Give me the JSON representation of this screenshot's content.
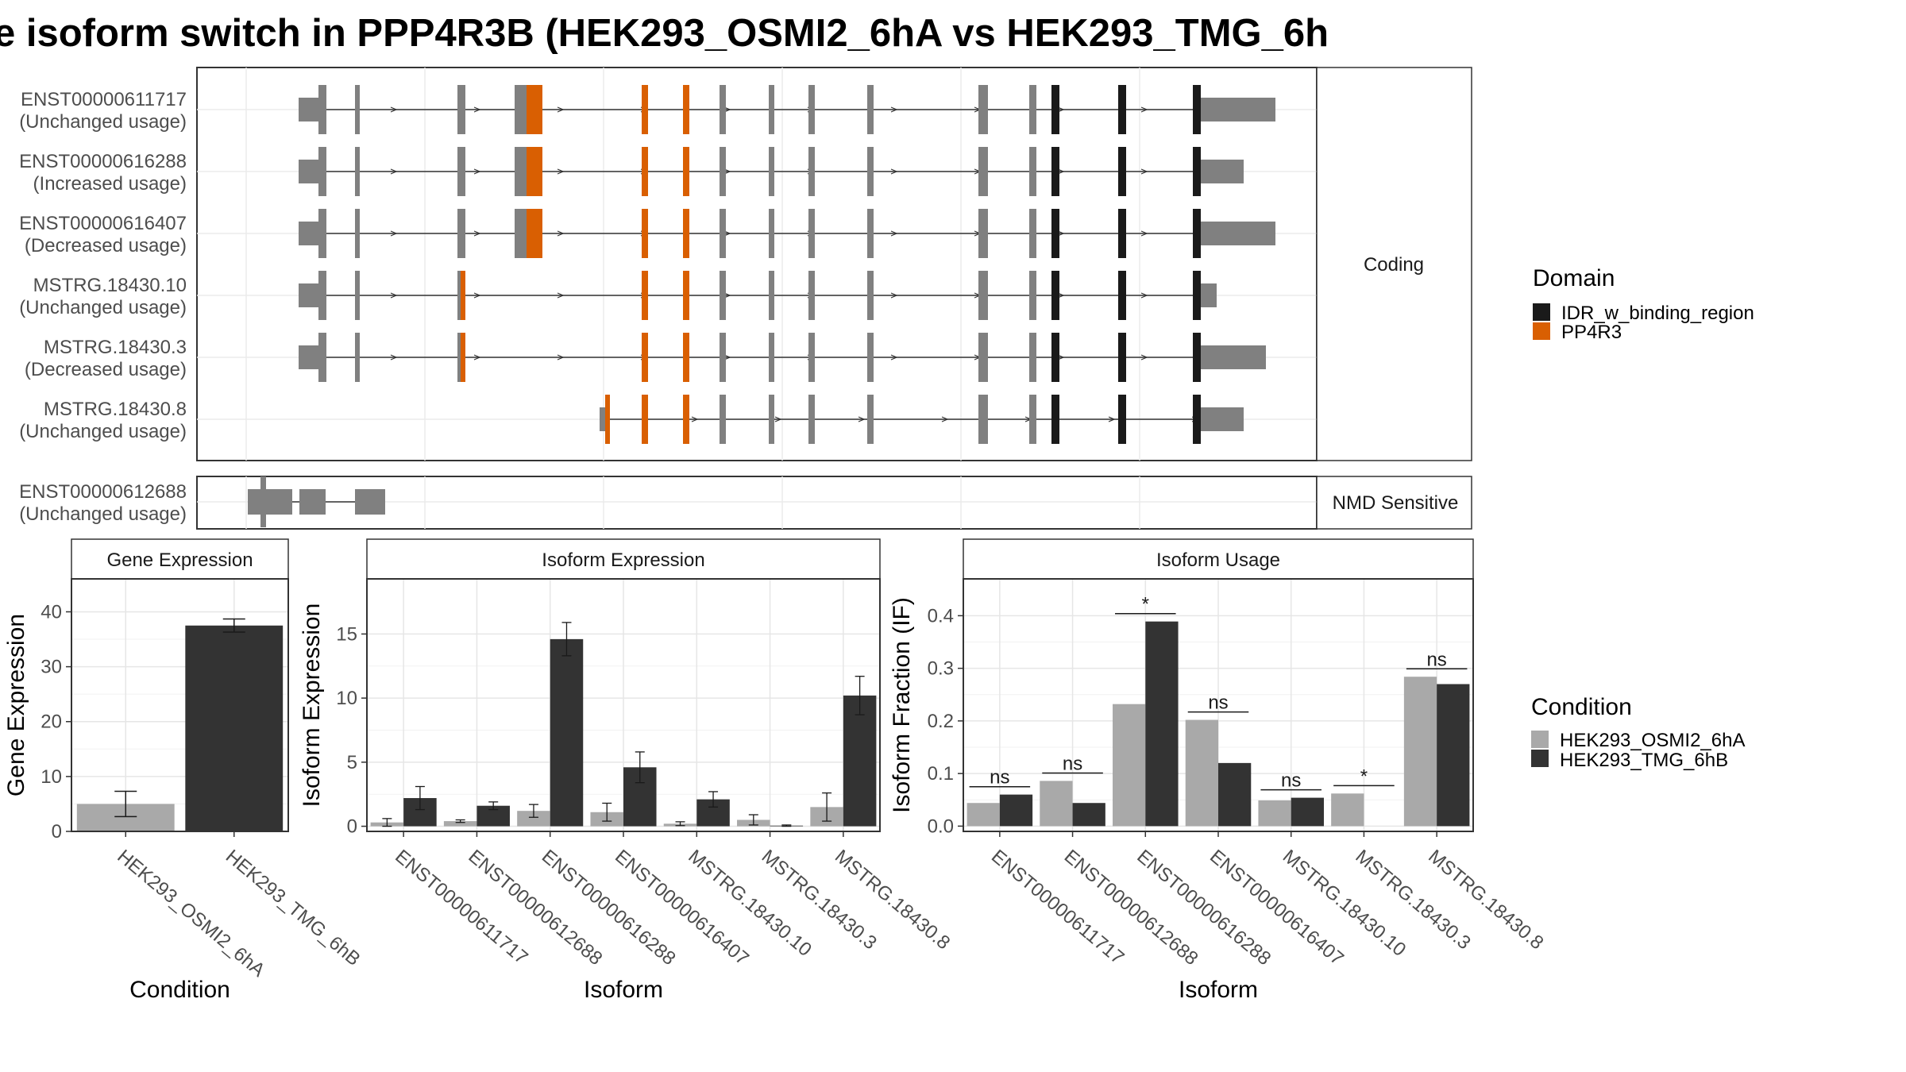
{
  "title": "e isoform switch in PPP4R3B (HEK293_OSMI2_6hA vs HEK293_TMG_6h",
  "transcript_panel": {
    "tracks": [
      {
        "id": "ENST00000611717",
        "usage": "(Unchanged usage)"
      },
      {
        "id": "ENST00000616288",
        "usage": "(Increased usage)"
      },
      {
        "id": "ENST00000616407",
        "usage": "(Decreased usage)"
      },
      {
        "id": "MSTRG.18430.10",
        "usage": "(Unchanged usage)"
      },
      {
        "id": "MSTRG.18430.3",
        "usage": "(Decreased usage)"
      },
      {
        "id": "MSTRG.18430.8",
        "usage": "(Unchanged usage)"
      }
    ],
    "nmd_track": {
      "id": "ENST00000612688",
      "usage": "(Unchanged usage)"
    },
    "strip_coding": "Coding",
    "strip_nmd": "NMD Sensitive",
    "domain_legend": {
      "title": "Domain",
      "items": [
        {
          "label": "IDR_w_binding_region",
          "color": "#1a1a1a"
        },
        {
          "label": "PP4R3",
          "color": "#d95f02"
        }
      ]
    },
    "exon_color": "#808080"
  },
  "condition_legend": {
    "title": "Condition",
    "items": [
      {
        "label": "HEK293_OSMI2_6hA",
        "color": "#a9a9a9"
      },
      {
        "label": "HEK293_TMG_6hB",
        "color": "#333333"
      }
    ]
  },
  "chart_data": [
    {
      "type": "bar",
      "strip": "Gene Expression",
      "xlabel": "Condition",
      "ylabel": "Gene Expression",
      "categories": [
        "HEK293_OSMI2_6hA",
        "HEK293_TMG_6hB"
      ],
      "values": [
        5.0,
        37.5
      ],
      "errors": [
        2.3,
        1.2
      ],
      "ylim": [
        0,
        46
      ],
      "yticks": [
        0,
        10,
        20,
        30,
        40
      ]
    },
    {
      "type": "bar",
      "strip": "Isoform Expression",
      "xlabel": "Isoform",
      "ylabel": "Isoform Expression",
      "categories": [
        "ENST00000611717",
        "ENST00000612688",
        "ENST00000616288",
        "ENST00000616407",
        "MSTRG.18430.10",
        "MSTRG.18430.3",
        "MSTRG.18430.8"
      ],
      "series": [
        {
          "name": "HEK293_OSMI2_6hA",
          "values": [
            0.3,
            0.4,
            1.2,
            1.1,
            0.2,
            0.5,
            1.5
          ],
          "errors": [
            0.3,
            0.1,
            0.5,
            0.7,
            0.15,
            0.4,
            1.1
          ]
        },
        {
          "name": "HEK293_TMG_6hB",
          "values": [
            2.2,
            1.6,
            14.6,
            4.6,
            2.1,
            0.05,
            10.2
          ],
          "errors": [
            0.9,
            0.3,
            1.3,
            1.2,
            0.6,
            0.05,
            1.5
          ]
        }
      ],
      "ylim": [
        -0.4,
        19.3
      ],
      "yticks": [
        0,
        5,
        10,
        15
      ]
    },
    {
      "type": "bar",
      "strip": "Isoform Usage",
      "xlabel": "Isoform",
      "ylabel": "Isoform Fraction (IF)",
      "categories": [
        "ENST00000611717",
        "ENST00000612688",
        "ENST00000616288",
        "ENST00000616407",
        "MSTRG.18430.10",
        "MSTRG.18430.3",
        "MSTRG.18430.8"
      ],
      "series": [
        {
          "name": "HEK293_OSMI2_6hA",
          "values": [
            0.044,
            0.086,
            0.232,
            0.202,
            0.049,
            0.062,
            0.284
          ]
        },
        {
          "name": "HEK293_TMG_6hB",
          "values": [
            0.06,
            0.044,
            0.389,
            0.12,
            0.054,
            0.0,
            0.27
          ]
        }
      ],
      "significance": [
        "ns",
        "ns",
        "*",
        "ns",
        "ns",
        "*",
        "ns"
      ],
      "ylim": [
        -0.01,
        0.47
      ],
      "yticks": [
        0.0,
        0.1,
        0.2,
        0.3,
        0.4
      ],
      "ytick_labels": [
        "0.0",
        "0.1",
        "0.2",
        "0.3",
        "0.4"
      ]
    }
  ]
}
